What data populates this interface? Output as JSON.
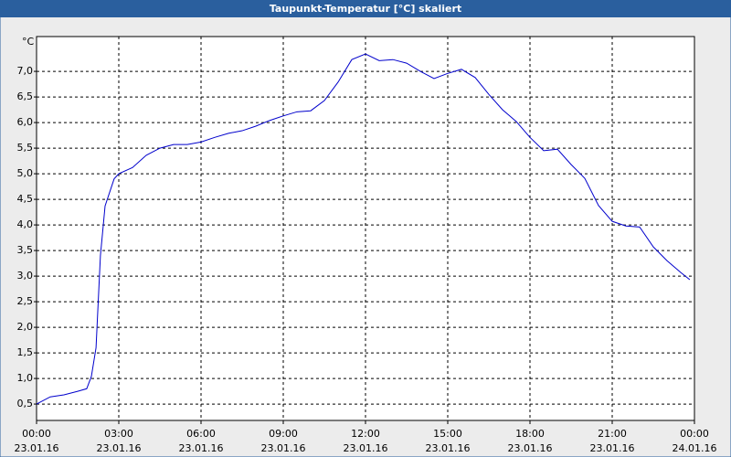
{
  "chart_data": {
    "type": "line",
    "title": "Taupunkt-Temperatur [°C] skaliert",
    "y_unit": "°C",
    "x": [
      0,
      0.5,
      1,
      1.5,
      1.83,
      2,
      2.17,
      2.33,
      2.5,
      2.83,
      3,
      3.5,
      4,
      4.5,
      5,
      5.5,
      6,
      6.5,
      7,
      7.5,
      8,
      8.5,
      9,
      9.5,
      10,
      10.5,
      11,
      11.5,
      12,
      12.5,
      13,
      13.5,
      14,
      14.5,
      15,
      15.5,
      16,
      16.5,
      17,
      17.5,
      18,
      18.5,
      19,
      19.5,
      20,
      20.5,
      21,
      21.5,
      22,
      22.5,
      23,
      23.5,
      23.83
    ],
    "series": [
      {
        "name": "Taupunkt-Temperatur",
        "color": "#0000cc",
        "values": [
          0.5,
          0.64,
          0.68,
          0.75,
          0.8,
          1.04,
          1.6,
          3.4,
          4.37,
          4.9,
          5.0,
          5.12,
          5.36,
          5.5,
          5.57,
          5.57,
          5.62,
          5.71,
          5.79,
          5.84,
          5.93,
          6.04,
          6.13,
          6.21,
          6.23,
          6.43,
          6.79,
          7.23,
          7.34,
          7.21,
          7.23,
          7.16,
          7.0,
          6.86,
          6.96,
          7.04,
          6.88,
          6.55,
          6.25,
          6.02,
          5.71,
          5.45,
          5.48,
          5.18,
          4.91,
          4.38,
          4.07,
          3.98,
          3.96,
          3.57,
          3.3,
          3.07,
          2.93
        ]
      }
    ],
    "xlim": [
      0,
      24
    ],
    "xticks": [
      {
        "value": 0,
        "label": "00:00"
      },
      {
        "value": 3,
        "label": "03:00"
      },
      {
        "value": 6,
        "label": "06:00"
      },
      {
        "value": 9,
        "label": "09:00"
      },
      {
        "value": 12,
        "label": "12:00"
      },
      {
        "value": 15,
        "label": "15:00"
      },
      {
        "value": 18,
        "label": "18:00"
      },
      {
        "value": 21,
        "label": "21:00"
      },
      {
        "value": 24,
        "label": "00:00"
      }
    ],
    "xtick_dates": [
      "23.01.16",
      "23.01.16",
      "23.01.16",
      "23.01.16",
      "23.01.16",
      "23.01.16",
      "23.01.16",
      "23.01.16",
      "24.01.16"
    ],
    "ylim": [
      0.18,
      7.68
    ],
    "yticks": [
      {
        "value": 0.5,
        "label": "0,5"
      },
      {
        "value": 1.0,
        "label": "1,0"
      },
      {
        "value": 1.5,
        "label": "1,5"
      },
      {
        "value": 2.0,
        "label": "2,0"
      },
      {
        "value": 2.5,
        "label": "2,5"
      },
      {
        "value": 3.0,
        "label": "3,0"
      },
      {
        "value": 3.5,
        "label": "3,5"
      },
      {
        "value": 4.0,
        "label": "4,0"
      },
      {
        "value": 4.5,
        "label": "4,5"
      },
      {
        "value": 5.0,
        "label": "5,0"
      },
      {
        "value": 5.5,
        "label": "5,5"
      },
      {
        "value": 6.0,
        "label": "6,0"
      },
      {
        "value": 6.5,
        "label": "6,5"
      },
      {
        "value": 7.0,
        "label": "7,0"
      }
    ],
    "grid": true
  }
}
